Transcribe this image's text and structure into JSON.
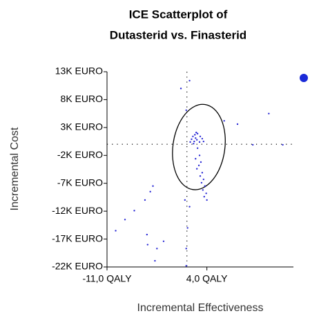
{
  "chart_data": {
    "type": "scatter",
    "title": [
      "ICE Scatterplot of",
      "Dutasterid vs. Finasterid"
    ],
    "x_label": "Incremental Effectiveness",
    "y_label": "Incremental Cost",
    "color": "#2b2bd6",
    "xlim": [
      -11,
      17
    ],
    "ylim": [
      -22000,
      13000
    ],
    "xticks": [
      {
        "value": -11,
        "label": "-11,0 QALY"
      },
      {
        "value": 4,
        "label": "4,0 QALY"
      }
    ],
    "yticks": [
      {
        "value": 13000,
        "label": "13K EURO"
      },
      {
        "value": 8000,
        "label": "8K EURO"
      },
      {
        "value": 3000,
        "label": "3K EURO"
      },
      {
        "value": -2000,
        "label": "-2K EURO"
      },
      {
        "value": -7000,
        "label": "-7K EURO"
      },
      {
        "value": -12000,
        "label": "-12K EURO"
      },
      {
        "value": -17000,
        "label": "-17K EURO"
      },
      {
        "value": -22000,
        "label": "-22K EURO"
      }
    ],
    "reference_x": 1,
    "reference_y": 0,
    "ellipse": {
      "cx": 2.8,
      "cy": -500,
      "rx": 3.9,
      "ry": 7700
    },
    "x": [
      2.2,
      2.4,
      2.6,
      1.9,
      3.0,
      2.3,
      1.7,
      3.3,
      2.5,
      2.1,
      2.9,
      3.5,
      1.5,
      2.0,
      2.6,
      2.9,
      3.1,
      2.8,
      3.3,
      3.0,
      3.5,
      3.2,
      3.7,
      3.4,
      3.9,
      3.6,
      4.0,
      2.5,
      2.3,
      -4.1,
      -4.5,
      -5.3,
      -6.9,
      -8.3,
      -9.7,
      -5.0,
      -4.9,
      -3.5,
      -3.8,
      -2.5,
      0.7,
      1.4,
      1.1,
      0.9,
      0.9,
      0.9,
      0.1,
      1.4,
      6.6,
      8.6,
      13.3,
      15.4,
      10.9
    ],
    "values": [
      1700,
      2100,
      1900,
      1400,
      1400,
      1100,
      900,
      1000,
      800,
      500,
      400,
      500,
      400,
      100,
      -700,
      -2000,
      -3200,
      -3800,
      -5100,
      -5700,
      -6300,
      -6900,
      -7500,
      -8200,
      -8800,
      -9400,
      -10000,
      -4400,
      -2600,
      -7500,
      -8500,
      -10000,
      -11900,
      -13500,
      -15500,
      -16200,
      -18000,
      -18700,
      -20900,
      -17400,
      -10000,
      -11200,
      -15000,
      -18700,
      -21800,
      6100,
      10000,
      11400,
      4200,
      3600,
      5500,
      -100,
      -100
    ]
  }
}
